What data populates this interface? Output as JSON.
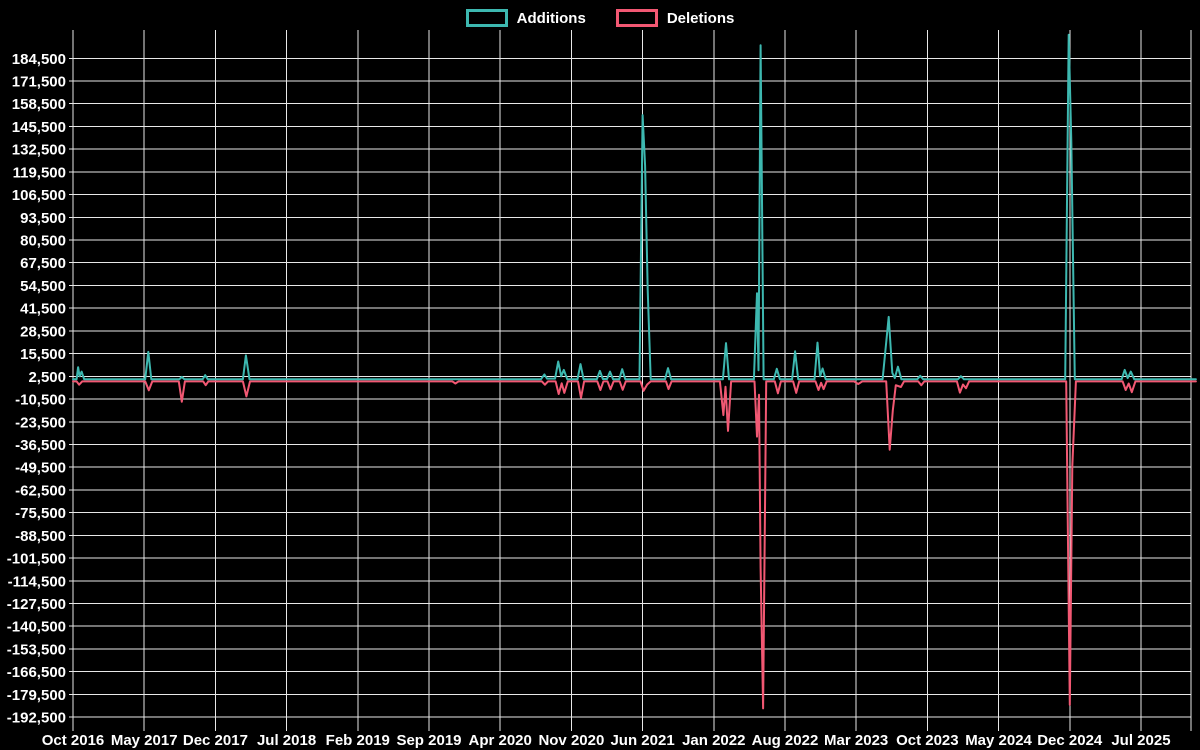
{
  "colors": {
    "background": "#000000",
    "grid": "#e8e8e8",
    "text": "#ffffff",
    "additions": "#3db8b0",
    "deletions": "#f25873"
  },
  "chart_data": {
    "type": "line",
    "title": "",
    "xlabel": "",
    "ylabel": "",
    "grid": true,
    "legend_position": "top-center",
    "ylim": [
      -192500,
      198000
    ],
    "y_tick_step": 13000,
    "x_unit": "months since Oct 2016 (weekly data, grid/tick every 7 months)",
    "legend": [
      {
        "label": "Additions",
        "color": "#3db8b0"
      },
      {
        "label": "Deletions",
        "color": "#f25873"
      }
    ],
    "y_tick_labels": [
      "184,500",
      "171,500",
      "158,500",
      "145,500",
      "132,500",
      "119,500",
      "106,500",
      "93,500",
      "80,500",
      "67,500",
      "54,500",
      "41,500",
      "28,500",
      "15,500",
      "2,500",
      "-10,500",
      "-23,500",
      "-36,500",
      "-49,500",
      "-62,500",
      "-75,500",
      "-88,500",
      "-101,500",
      "-114,500",
      "-127,500",
      "-140,500",
      "-153,500",
      "-166,500",
      "-179,500",
      "-192,500"
    ],
    "x_tick_labels": [
      "Oct 2016",
      "May 2017",
      "Dec 2017",
      "Jul 2018",
      "Feb 2019",
      "Sep 2019",
      "Apr 2020",
      "Nov 2020",
      "Jun 2021",
      "Jan 2022",
      "Aug 2022",
      "Mar 2023",
      "Oct 2023",
      "May 2024",
      "Dec 2024",
      "Jul 2025"
    ],
    "series": [
      {
        "name": "Additions",
        "color": "#3db8b0",
        "points": [
          [
            0,
            800
          ],
          [
            0.35,
            800
          ],
          [
            0.5,
            7700
          ],
          [
            0.65,
            2500
          ],
          [
            0.85,
            5200
          ],
          [
            1.1,
            800
          ],
          [
            7.1,
            800
          ],
          [
            7.4,
            16500
          ],
          [
            7.7,
            800
          ],
          [
            10.45,
            800
          ],
          [
            10.7,
            2200
          ],
          [
            10.95,
            800
          ],
          [
            12.75,
            800
          ],
          [
            13.0,
            3200
          ],
          [
            13.25,
            800
          ],
          [
            16.7,
            800
          ],
          [
            17.0,
            14500
          ],
          [
            17.35,
            800
          ],
          [
            46.0,
            800
          ],
          [
            46.35,
            3600
          ],
          [
            46.6,
            1200
          ],
          [
            47.4,
            1200
          ],
          [
            47.7,
            11000
          ],
          [
            48.0,
            2500
          ],
          [
            48.25,
            6200
          ],
          [
            48.6,
            800
          ],
          [
            49.6,
            800
          ],
          [
            49.9,
            9500
          ],
          [
            50.2,
            800
          ],
          [
            51.5,
            800
          ],
          [
            51.8,
            5600
          ],
          [
            52.1,
            1000
          ],
          [
            52.5,
            1000
          ],
          [
            52.8,
            5200
          ],
          [
            53.1,
            800
          ],
          [
            53.7,
            800
          ],
          [
            54.0,
            6600
          ],
          [
            54.3,
            800
          ],
          [
            55.7,
            800
          ],
          [
            56.0,
            152000
          ],
          [
            56.25,
            123000
          ],
          [
            56.5,
            52000
          ],
          [
            56.8,
            800
          ],
          [
            58.2,
            800
          ],
          [
            58.5,
            7200
          ],
          [
            58.8,
            800
          ],
          [
            63.9,
            800
          ],
          [
            64.2,
            21500
          ],
          [
            64.5,
            800
          ],
          [
            66.95,
            800
          ],
          [
            67.25,
            50000
          ],
          [
            67.4,
            6000
          ],
          [
            67.6,
            192000
          ],
          [
            67.9,
            800
          ],
          [
            68.9,
            800
          ],
          [
            69.2,
            6800
          ],
          [
            69.5,
            800
          ],
          [
            70.7,
            800
          ],
          [
            71.0,
            16800
          ],
          [
            71.3,
            800
          ],
          [
            72.9,
            800
          ],
          [
            73.2,
            21800
          ],
          [
            73.45,
            2500
          ],
          [
            73.7,
            7000
          ],
          [
            74.0,
            800
          ],
          [
            79.6,
            800
          ],
          [
            79.95,
            22000
          ],
          [
            80.2,
            36500
          ],
          [
            80.55,
            4500
          ],
          [
            80.8,
            1500
          ],
          [
            81.1,
            8000
          ],
          [
            81.45,
            800
          ],
          [
            83.0,
            800
          ],
          [
            83.3,
            2800
          ],
          [
            83.6,
            800
          ],
          [
            87.0,
            800
          ],
          [
            87.3,
            2600
          ],
          [
            87.6,
            800
          ],
          [
            97.55,
            800
          ],
          [
            97.9,
            198000
          ],
          [
            98.15,
            137000
          ],
          [
            98.5,
            800
          ],
          [
            103.1,
            800
          ],
          [
            103.4,
            6200
          ],
          [
            103.7,
            1500
          ],
          [
            104.0,
            5200
          ],
          [
            104.35,
            800
          ],
          [
            110.4,
            800
          ]
        ]
      },
      {
        "name": "Deletions",
        "color": "#f25873",
        "points": [
          [
            0,
            -400
          ],
          [
            0.35,
            -400
          ],
          [
            0.6,
            -2300
          ],
          [
            0.9,
            -400
          ],
          [
            7.1,
            -400
          ],
          [
            7.45,
            -5500
          ],
          [
            7.8,
            -400
          ],
          [
            10.4,
            -400
          ],
          [
            10.7,
            -12000
          ],
          [
            11.0,
            -400
          ],
          [
            12.8,
            -400
          ],
          [
            13.05,
            -2600
          ],
          [
            13.3,
            -400
          ],
          [
            16.7,
            -400
          ],
          [
            17.05,
            -9000
          ],
          [
            17.4,
            -400
          ],
          [
            37.3,
            -400
          ],
          [
            37.6,
            -1600
          ],
          [
            37.9,
            -400
          ],
          [
            46.1,
            -400
          ],
          [
            46.4,
            -2300
          ],
          [
            46.7,
            -400
          ],
          [
            47.45,
            -400
          ],
          [
            47.75,
            -7600
          ],
          [
            48.05,
            -1500
          ],
          [
            48.3,
            -7000
          ],
          [
            48.65,
            -400
          ],
          [
            49.65,
            -400
          ],
          [
            49.95,
            -9800
          ],
          [
            50.25,
            -400
          ],
          [
            51.55,
            -400
          ],
          [
            51.85,
            -5300
          ],
          [
            52.15,
            -400
          ],
          [
            52.55,
            -400
          ],
          [
            52.85,
            -4900
          ],
          [
            53.15,
            -400
          ],
          [
            53.75,
            -400
          ],
          [
            54.05,
            -5200
          ],
          [
            54.35,
            -400
          ],
          [
            55.8,
            -400
          ],
          [
            56.1,
            -5800
          ],
          [
            56.45,
            -2200
          ],
          [
            56.8,
            -400
          ],
          [
            58.3,
            -400
          ],
          [
            58.55,
            -4800
          ],
          [
            58.85,
            -400
          ],
          [
            63.6,
            -400
          ],
          [
            63.95,
            -19700
          ],
          [
            64.15,
            -3500
          ],
          [
            64.4,
            -28700
          ],
          [
            64.7,
            -400
          ],
          [
            67.0,
            -400
          ],
          [
            67.25,
            -32000
          ],
          [
            67.45,
            -8000
          ],
          [
            67.6,
            -107000
          ],
          [
            67.85,
            -187500
          ],
          [
            68.15,
            -400
          ],
          [
            69.0,
            -400
          ],
          [
            69.3,
            -7200
          ],
          [
            69.6,
            -400
          ],
          [
            70.8,
            -400
          ],
          [
            71.1,
            -7000
          ],
          [
            71.4,
            -400
          ],
          [
            73.0,
            -400
          ],
          [
            73.3,
            -5300
          ],
          [
            73.55,
            -1200
          ],
          [
            73.8,
            -4800
          ],
          [
            74.1,
            -400
          ],
          [
            76.8,
            -400
          ],
          [
            77.2,
            -1900
          ],
          [
            77.6,
            -400
          ],
          [
            79.95,
            -400
          ],
          [
            80.3,
            -39500
          ],
          [
            80.6,
            -17000
          ],
          [
            80.9,
            -2600
          ],
          [
            81.4,
            -3600
          ],
          [
            81.7,
            -400
          ],
          [
            83.1,
            -400
          ],
          [
            83.4,
            -2600
          ],
          [
            83.7,
            -400
          ],
          [
            86.9,
            -400
          ],
          [
            87.2,
            -6800
          ],
          [
            87.5,
            -2200
          ],
          [
            87.8,
            -4300
          ],
          [
            88.1,
            -400
          ],
          [
            97.65,
            -400
          ],
          [
            98.0,
            -185500
          ],
          [
            98.25,
            -49000
          ],
          [
            98.6,
            -400
          ],
          [
            103.2,
            -400
          ],
          [
            103.5,
            -5300
          ],
          [
            103.8,
            -1600
          ],
          [
            104.1,
            -6600
          ],
          [
            104.45,
            -400
          ],
          [
            110.4,
            -400
          ]
        ]
      }
    ]
  }
}
